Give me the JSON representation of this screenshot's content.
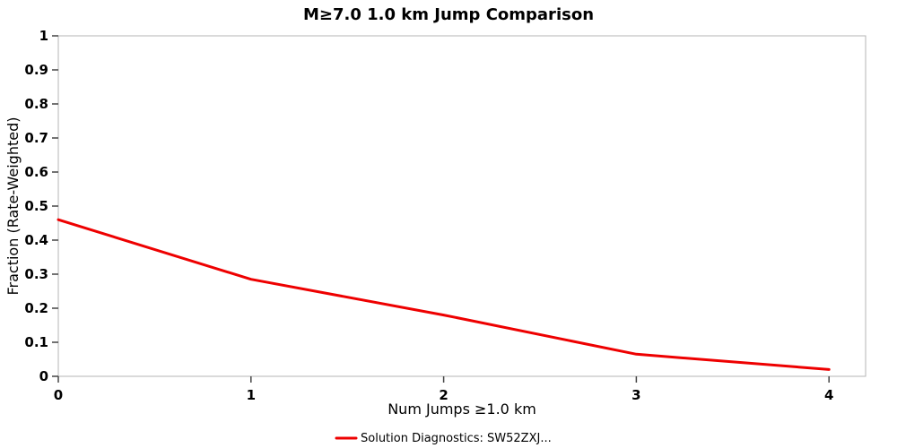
{
  "chart_data": {
    "type": "line",
    "title": "M≥7.0 1.0 km Jump Comparison",
    "xlabel": "Num Jumps ≥1.0 km",
    "ylabel": "Fraction (Rate-Weighted)",
    "x": [
      0,
      1,
      2,
      3,
      4
    ],
    "series": [
      {
        "name": "Solution Diagnostics: SW52ZXJ...",
        "color": "#ee0000",
        "values": [
          0.46,
          0.285,
          0.18,
          0.065,
          0.02
        ]
      }
    ],
    "xlim": [
      0,
      4.19
    ],
    "ylim": [
      0,
      1
    ],
    "xticks": [
      0,
      1,
      2,
      3,
      4
    ],
    "xtick_labels": [
      "0",
      "1",
      "2",
      "3",
      "4"
    ],
    "yticks": [
      0,
      0.1,
      0.2,
      0.3,
      0.4,
      0.5,
      0.6,
      0.7,
      0.8,
      0.9,
      1
    ],
    "ytick_labels": [
      "0",
      "0.1",
      "0.2",
      "0.3",
      "0.4",
      "0.5",
      "0.6",
      "0.7",
      "0.8",
      "0.9",
      "1"
    ],
    "grid": false,
    "legend_position": "bottom",
    "axis_color": "#b5b5b5",
    "tick_color": "#444444",
    "background": "#ffffff"
  }
}
